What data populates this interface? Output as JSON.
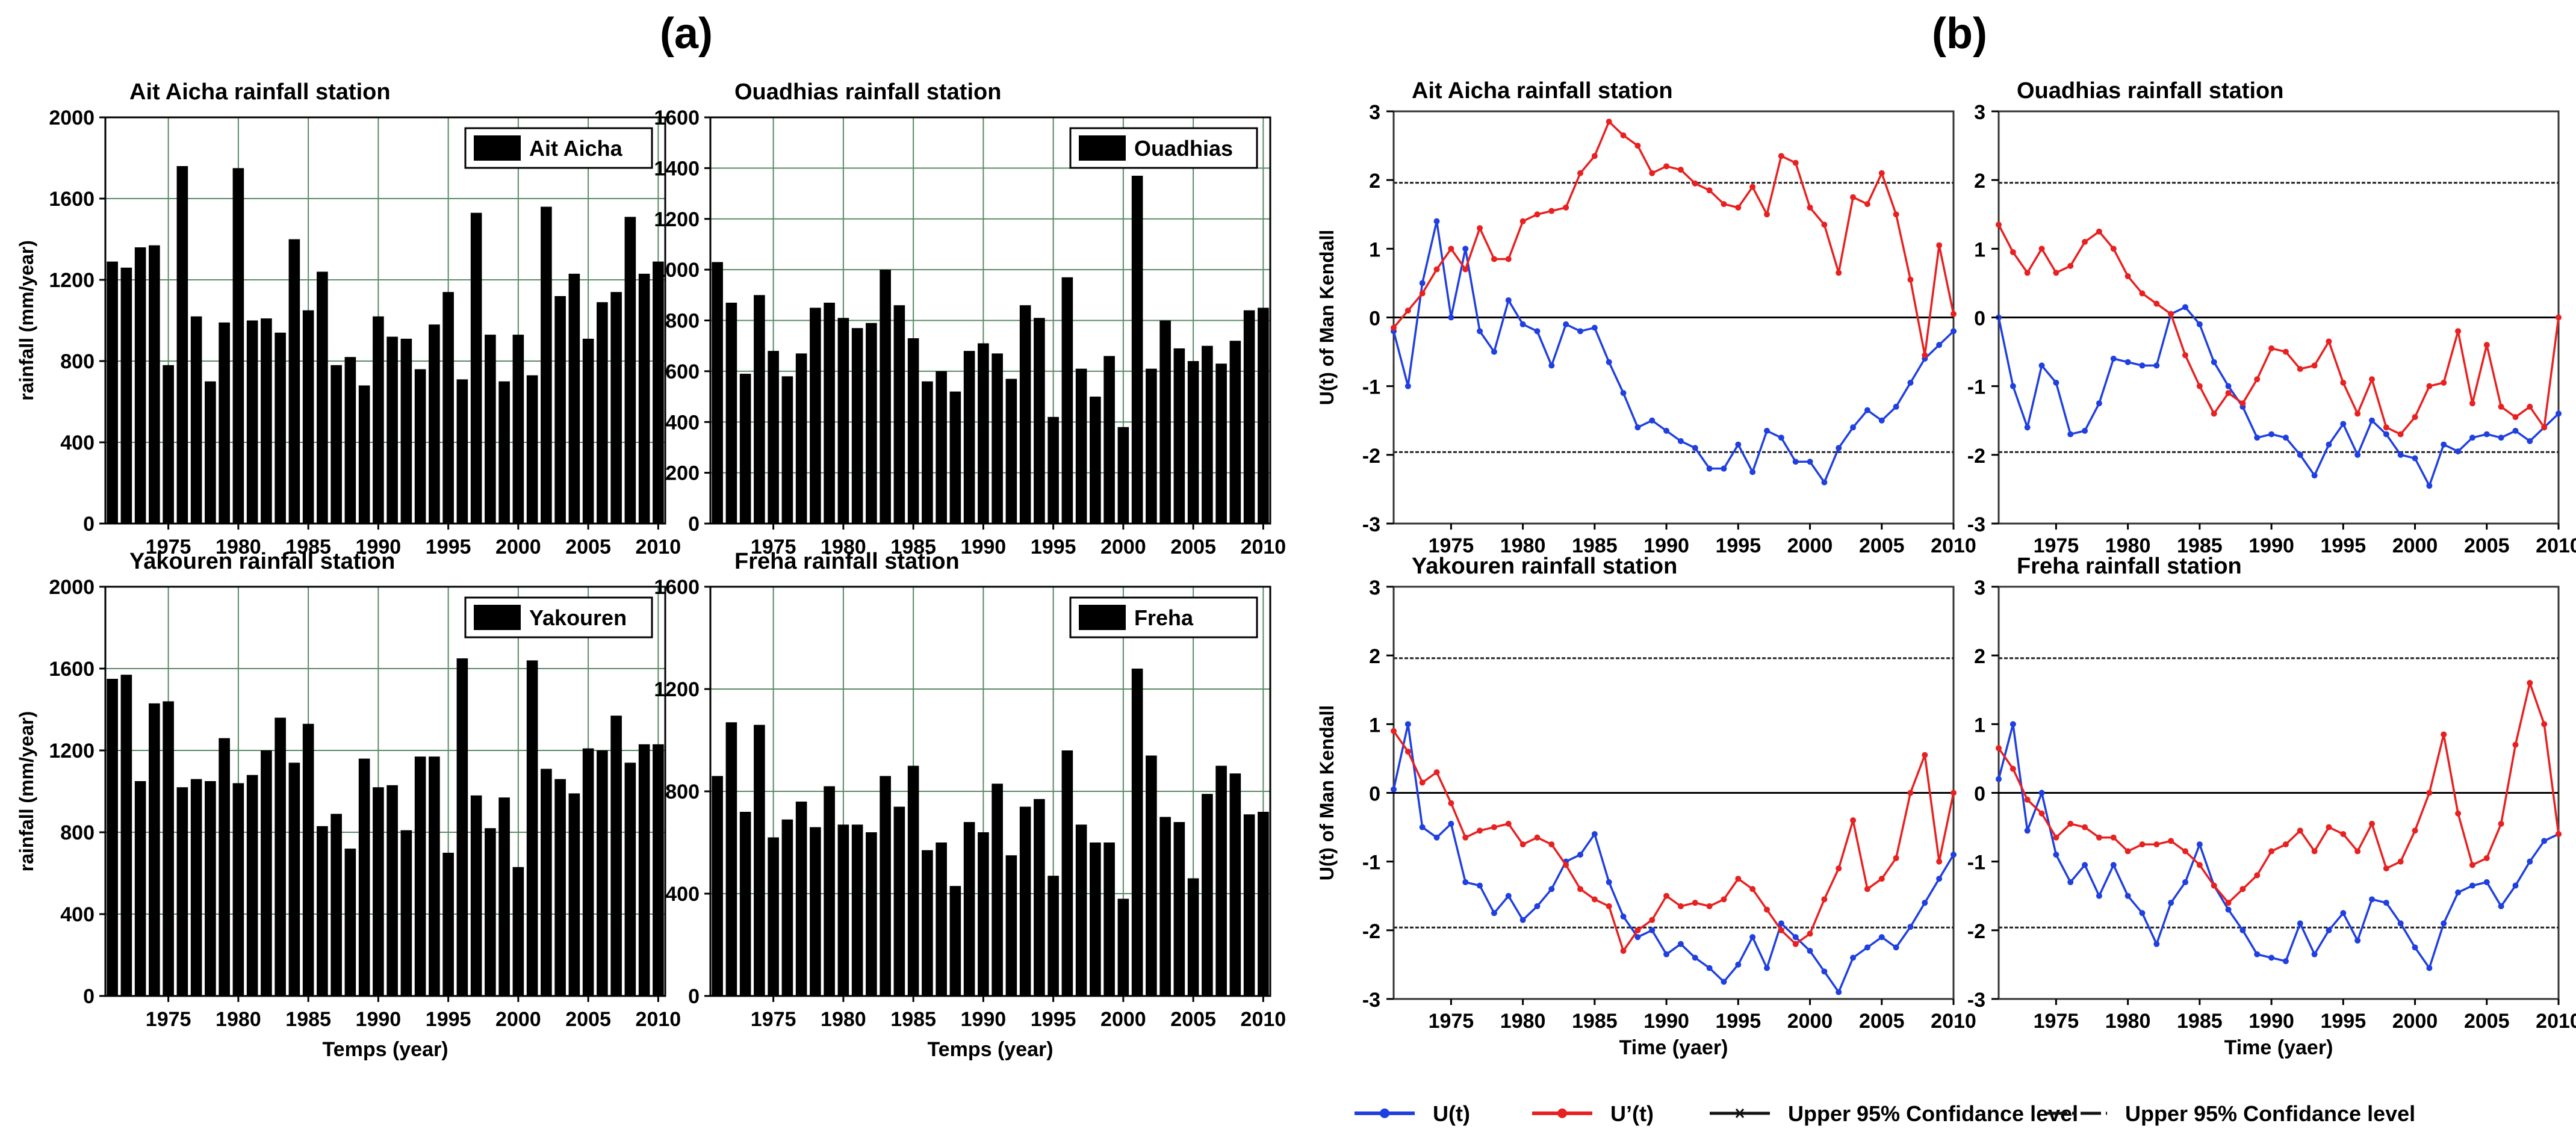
{
  "figure": {
    "panel_a_label": "(a)",
    "panel_b_label": "(b)",
    "legend_b": [
      {
        "label": "U(t)",
        "color": "#1f3fe0",
        "marker": "dot"
      },
      {
        "label": "U’(t)",
        "color": "#e82020",
        "marker": "dot"
      },
      {
        "label": "Upper 95% Confidance level",
        "color": "#111111",
        "marker": "x"
      },
      {
        "label": "Upper 95% Confidance level",
        "color": "#111111",
        "marker": "dash"
      }
    ]
  },
  "chart_data": [
    {
      "type": "bar",
      "station": "Ait Aicha",
      "title": "Ait Aicha rainfall station",
      "legend": "Ait Aicha",
      "xlabel": "",
      "ylabel": "rainfall (mm/year)",
      "years": [
        1971,
        1972,
        1973,
        1974,
        1975,
        1976,
        1977,
        1978,
        1979,
        1980,
        1981,
        1982,
        1983,
        1984,
        1985,
        1986,
        1987,
        1988,
        1989,
        1990,
        1991,
        1992,
        1993,
        1994,
        1995,
        1996,
        1997,
        1998,
        1999,
        2000,
        2001,
        2002,
        2003,
        2004,
        2005,
        2006,
        2007,
        2008,
        2009,
        2010
      ],
      "values": [
        1290,
        1260,
        1360,
        1370,
        780,
        1760,
        1020,
        700,
        990,
        1750,
        1000,
        1010,
        940,
        1400,
        1050,
        1240,
        780,
        820,
        680,
        1020,
        920,
        910,
        760,
        980,
        1140,
        710,
        1530,
        930,
        700,
        930,
        730,
        1560,
        1120,
        1230,
        910,
        1090,
        1140,
        1510,
        1230,
        1290
      ],
      "ylim": [
        0,
        2000
      ],
      "yticks": [
        0,
        400,
        800,
        1200,
        1600,
        2000
      ],
      "xticks": [
        1975,
        1980,
        1985,
        1990,
        1995,
        2000,
        2005,
        2010
      ]
    },
    {
      "type": "bar",
      "station": "Ouadhias",
      "title": "Ouadhias rainfall station",
      "legend": "Ouadhias",
      "xlabel": "",
      "ylabel": "",
      "years": [
        1971,
        1972,
        1973,
        1974,
        1975,
        1976,
        1977,
        1978,
        1979,
        1980,
        1981,
        1982,
        1983,
        1984,
        1985,
        1986,
        1987,
        1988,
        1989,
        1990,
        1991,
        1992,
        1993,
        1994,
        1995,
        1996,
        1997,
        1998,
        1999,
        2000,
        2001,
        2002,
        2003,
        2004,
        2005,
        2006,
        2007,
        2008,
        2009,
        2010
      ],
      "values": [
        1030,
        870,
        590,
        900,
        680,
        580,
        670,
        850,
        870,
        810,
        770,
        790,
        1000,
        860,
        730,
        560,
        600,
        520,
        680,
        710,
        670,
        570,
        860,
        810,
        420,
        970,
        610,
        500,
        660,
        380,
        1370,
        610,
        800,
        690,
        640,
        700,
        630,
        720,
        840,
        850
      ],
      "ylim": [
        0,
        1600
      ],
      "yticks": [
        0,
        200,
        400,
        600,
        800,
        1000,
        1200,
        1400,
        1600
      ],
      "xticks": [
        1975,
        1980,
        1985,
        1990,
        1995,
        2000,
        2005,
        2010
      ]
    },
    {
      "type": "bar",
      "station": "Yakouren",
      "title": "Yakouren rainfall station",
      "legend": "Yakouren",
      "xlabel": "Temps (year)",
      "ylabel": "rainfall (mm/year)",
      "years": [
        1971,
        1972,
        1973,
        1974,
        1975,
        1976,
        1977,
        1978,
        1979,
        1980,
        1981,
        1982,
        1983,
        1984,
        1985,
        1986,
        1987,
        1988,
        1989,
        1990,
        1991,
        1992,
        1993,
        1994,
        1995,
        1996,
        1997,
        1998,
        1999,
        2000,
        2001,
        2002,
        2003,
        2004,
        2005,
        2006,
        2007,
        2008,
        2009,
        2010
      ],
      "values": [
        1550,
        1570,
        1050,
        1430,
        1440,
        1020,
        1060,
        1050,
        1260,
        1040,
        1080,
        1200,
        1360,
        1140,
        1330,
        830,
        890,
        720,
        1160,
        1020,
        1030,
        810,
        1170,
        1170,
        700,
        1650,
        980,
        820,
        970,
        630,
        1640,
        1110,
        1060,
        990,
        1210,
        1200,
        1370,
        1140,
        1230,
        1230
      ],
      "ylim": [
        0,
        2000
      ],
      "yticks": [
        0,
        400,
        800,
        1200,
        1600,
        2000
      ],
      "xticks": [
        1975,
        1980,
        1985,
        1990,
        1995,
        2000,
        2005,
        2010
      ]
    },
    {
      "type": "bar",
      "station": "Freha",
      "title": "Freha rainfall station",
      "legend": "Freha",
      "xlabel": "Temps (year)",
      "ylabel": "",
      "years": [
        1971,
        1972,
        1973,
        1974,
        1975,
        1976,
        1977,
        1978,
        1979,
        1980,
        1981,
        1982,
        1983,
        1984,
        1985,
        1986,
        1987,
        1988,
        1989,
        1990,
        1991,
        1992,
        1993,
        1994,
        1995,
        1996,
        1997,
        1998,
        1999,
        2000,
        2001,
        2002,
        2003,
        2004,
        2005,
        2006,
        2007,
        2008,
        2009,
        2010
      ],
      "values": [
        860,
        1070,
        720,
        1060,
        620,
        690,
        760,
        660,
        820,
        670,
        670,
        640,
        860,
        740,
        900,
        570,
        600,
        430,
        680,
        640,
        830,
        550,
        740,
        770,
        470,
        960,
        670,
        600,
        600,
        380,
        1280,
        940,
        700,
        680,
        460,
        790,
        900,
        870,
        710,
        720
      ],
      "ylim": [
        0,
        1600
      ],
      "yticks": [
        0,
        400,
        800,
        1200,
        1600
      ],
      "xticks": [
        1975,
        1980,
        1985,
        1990,
        1995,
        2000,
        2005,
        2010
      ]
    },
    {
      "type": "line",
      "station": "Ait Aicha",
      "title": "Ait Aicha rainfall station",
      "xlabel": "",
      "ylabel": "U(t) of Man Kendall",
      "x": [
        1971,
        1972,
        1973,
        1974,
        1975,
        1976,
        1977,
        1978,
        1979,
        1980,
        1981,
        1982,
        1983,
        1984,
        1985,
        1986,
        1987,
        1988,
        1989,
        1990,
        1991,
        1992,
        1993,
        1994,
        1995,
        1996,
        1997,
        1998,
        1999,
        2000,
        2001,
        2002,
        2003,
        2004,
        2005,
        2006,
        2007,
        2008,
        2009,
        2010
      ],
      "series": [
        {
          "name": "U(t)",
          "values": [
            -0.2,
            -1.0,
            0.5,
            1.4,
            0.0,
            1.0,
            -0.2,
            -0.5,
            0.25,
            -0.1,
            -0.2,
            -0.7,
            -0.1,
            -0.2,
            -0.15,
            -0.65,
            -1.1,
            -1.6,
            -1.5,
            -1.65,
            -1.8,
            -1.9,
            -2.2,
            -2.2,
            -1.85,
            -2.25,
            -1.65,
            -1.75,
            -2.1,
            -2.1,
            -2.4,
            -1.9,
            -1.6,
            -1.35,
            -1.5,
            -1.3,
            -0.95,
            -0.6,
            -0.4,
            -0.2
          ]
        },
        {
          "name": "U’(t)",
          "values": [
            -0.15,
            0.1,
            0.35,
            0.7,
            1.0,
            0.7,
            1.3,
            0.85,
            0.85,
            1.4,
            1.5,
            1.55,
            1.6,
            2.1,
            2.35,
            2.85,
            2.65,
            2.5,
            2.1,
            2.2,
            2.15,
            1.95,
            1.85,
            1.65,
            1.6,
            1.9,
            1.5,
            2.35,
            2.25,
            1.6,
            1.35,
            0.65,
            1.75,
            1.65,
            2.1,
            1.5,
            0.55,
            -0.55,
            1.05,
            0.05
          ]
        }
      ],
      "upper": 1.96,
      "lower": -1.96,
      "ylim": [
        -3,
        3
      ],
      "yticks": [
        -3,
        -2,
        -1,
        0,
        1,
        2,
        3
      ],
      "xlim": [
        1971,
        2010
      ],
      "xticks": [
        1975,
        1980,
        1985,
        1990,
        1995,
        2000,
        2005,
        2010
      ]
    },
    {
      "type": "line",
      "station": "Ouadhias",
      "title": "Ouadhias rainfall station",
      "xlabel": "",
      "ylabel": "",
      "x": [
        1971,
        1972,
        1973,
        1974,
        1975,
        1976,
        1977,
        1978,
        1979,
        1980,
        1981,
        1982,
        1983,
        1984,
        1985,
        1986,
        1987,
        1988,
        1989,
        1990,
        1991,
        1992,
        1993,
        1994,
        1995,
        1996,
        1997,
        1998,
        1999,
        2000,
        2001,
        2002,
        2003,
        2004,
        2005,
        2006,
        2007,
        2008,
        2009,
        2010
      ],
      "series": [
        {
          "name": "U(t)",
          "values": [
            0.0,
            -1.0,
            -1.6,
            -0.7,
            -0.95,
            -1.7,
            -1.65,
            -1.25,
            -0.6,
            -0.65,
            -0.7,
            -0.7,
            0.05,
            0.15,
            -0.1,
            -0.65,
            -1.0,
            -1.3,
            -1.75,
            -1.7,
            -1.75,
            -2.0,
            -2.3,
            -1.85,
            -1.55,
            -2.0,
            -1.5,
            -1.7,
            -2.0,
            -2.05,
            -2.45,
            -1.85,
            -1.95,
            -1.75,
            -1.7,
            -1.75,
            -1.65,
            -1.8,
            -1.6,
            -1.4
          ]
        },
        {
          "name": "U’(t)",
          "values": [
            1.35,
            0.95,
            0.65,
            1.0,
            0.65,
            0.75,
            1.1,
            1.25,
            1.0,
            0.6,
            0.35,
            0.2,
            0.05,
            -0.55,
            -1.0,
            -1.4,
            -1.1,
            -1.25,
            -0.9,
            -0.45,
            -0.5,
            -0.75,
            -0.7,
            -0.35,
            -0.95,
            -1.4,
            -0.9,
            -1.6,
            -1.7,
            -1.45,
            -1.0,
            -0.95,
            -0.2,
            -1.25,
            -0.4,
            -1.3,
            -1.45,
            -1.3,
            -1.6,
            0.0
          ]
        }
      ],
      "upper": 1.96,
      "lower": -1.96,
      "ylim": [
        -3,
        3
      ],
      "yticks": [
        -3,
        -2,
        -1,
        0,
        1,
        2,
        3
      ],
      "xlim": [
        1971,
        2010
      ],
      "xticks": [
        1975,
        1980,
        1985,
        1990,
        1995,
        2000,
        2005,
        2010
      ]
    },
    {
      "type": "line",
      "station": "Yakouren",
      "title": "Yakouren rainfall station",
      "xlabel": "Time (yaer)",
      "ylabel": "U(t) of Man Kendall",
      "x": [
        1971,
        1972,
        1973,
        1974,
        1975,
        1976,
        1977,
        1978,
        1979,
        1980,
        1981,
        1982,
        1983,
        1984,
        1985,
        1986,
        1987,
        1988,
        1989,
        1990,
        1991,
        1992,
        1993,
        1994,
        1995,
        1996,
        1997,
        1998,
        1999,
        2000,
        2001,
        2002,
        2003,
        2004,
        2005,
        2006,
        2007,
        2008,
        2009,
        2010
      ],
      "series": [
        {
          "name": "U(t)",
          "values": [
            0.05,
            1.0,
            -0.5,
            -0.65,
            -0.45,
            -1.3,
            -1.35,
            -1.75,
            -1.5,
            -1.85,
            -1.65,
            -1.4,
            -1.0,
            -0.9,
            -0.6,
            -1.3,
            -1.8,
            -2.1,
            -2.0,
            -2.35,
            -2.2,
            -2.4,
            -2.55,
            -2.75,
            -2.5,
            -2.1,
            -2.55,
            -1.9,
            -2.1,
            -2.3,
            -2.6,
            -2.9,
            -2.4,
            -2.25,
            -2.1,
            -2.25,
            -1.95,
            -1.6,
            -1.25,
            -0.9
          ]
        },
        {
          "name": "U’(t)",
          "values": [
            0.9,
            0.6,
            0.15,
            0.3,
            -0.15,
            -0.65,
            -0.55,
            -0.5,
            -0.45,
            -0.75,
            -0.65,
            -0.75,
            -1.05,
            -1.4,
            -1.55,
            -1.65,
            -2.3,
            -2.0,
            -1.85,
            -1.5,
            -1.65,
            -1.6,
            -1.65,
            -1.55,
            -1.25,
            -1.4,
            -1.7,
            -2.0,
            -2.2,
            -2.05,
            -1.55,
            -1.1,
            -0.4,
            -1.4,
            -1.25,
            -0.95,
            0.0,
            0.55,
            -1.0,
            0.0
          ]
        }
      ],
      "upper": 1.96,
      "lower": -1.96,
      "ylim": [
        -3,
        3
      ],
      "yticks": [
        -3,
        -2,
        -1,
        0,
        1,
        2,
        3
      ],
      "xlim": [
        1971,
        2010
      ],
      "xticks": [
        1975,
        1980,
        1985,
        1990,
        1995,
        2000,
        2005,
        2010
      ]
    },
    {
      "type": "line",
      "station": "Freha",
      "title": "Freha rainfall station",
      "xlabel": "Time (yaer)",
      "ylabel": "",
      "x": [
        1971,
        1972,
        1973,
        1974,
        1975,
        1976,
        1977,
        1978,
        1979,
        1980,
        1981,
        1982,
        1983,
        1984,
        1985,
        1986,
        1987,
        1988,
        1989,
        1990,
        1991,
        1992,
        1993,
        1994,
        1995,
        1996,
        1997,
        1998,
        1999,
        2000,
        2001,
        2002,
        2003,
        2004,
        2005,
        2006,
        2007,
        2008,
        2009,
        2010
      ],
      "series": [
        {
          "name": "U(t)",
          "values": [
            0.2,
            1.0,
            -0.55,
            0.0,
            -0.9,
            -1.3,
            -1.05,
            -1.5,
            -1.05,
            -1.5,
            -1.75,
            -2.2,
            -1.6,
            -1.3,
            -0.75,
            -1.35,
            -1.7,
            -2.0,
            -2.35,
            -2.4,
            -2.45,
            -1.9,
            -2.35,
            -2.0,
            -1.75,
            -2.15,
            -1.55,
            -1.6,
            -1.9,
            -2.25,
            -2.55,
            -1.9,
            -1.45,
            -1.35,
            -1.3,
            -1.65,
            -1.35,
            -1.0,
            -0.7,
            -0.6
          ]
        },
        {
          "name": "U’(t)",
          "values": [
            0.65,
            0.35,
            -0.1,
            -0.3,
            -0.65,
            -0.45,
            -0.5,
            -0.65,
            -0.65,
            -0.85,
            -0.75,
            -0.75,
            -0.7,
            -0.85,
            -1.05,
            -1.35,
            -1.6,
            -1.4,
            -1.2,
            -0.85,
            -0.75,
            -0.55,
            -0.85,
            -0.5,
            -0.6,
            -0.85,
            -0.45,
            -1.1,
            -1.0,
            -0.55,
            0.0,
            0.85,
            -0.3,
            -1.05,
            -0.95,
            -0.45,
            0.7,
            1.6,
            1.0,
            -0.6
          ]
        }
      ],
      "upper": 1.96,
      "lower": -1.96,
      "ylim": [
        -3,
        3
      ],
      "yticks": [
        -3,
        -2,
        -1,
        0,
        1,
        2,
        3
      ],
      "xlim": [
        1971,
        2010
      ],
      "xticks": [
        1975,
        1980,
        1985,
        1990,
        1995,
        2000,
        2005,
        2010
      ]
    }
  ]
}
